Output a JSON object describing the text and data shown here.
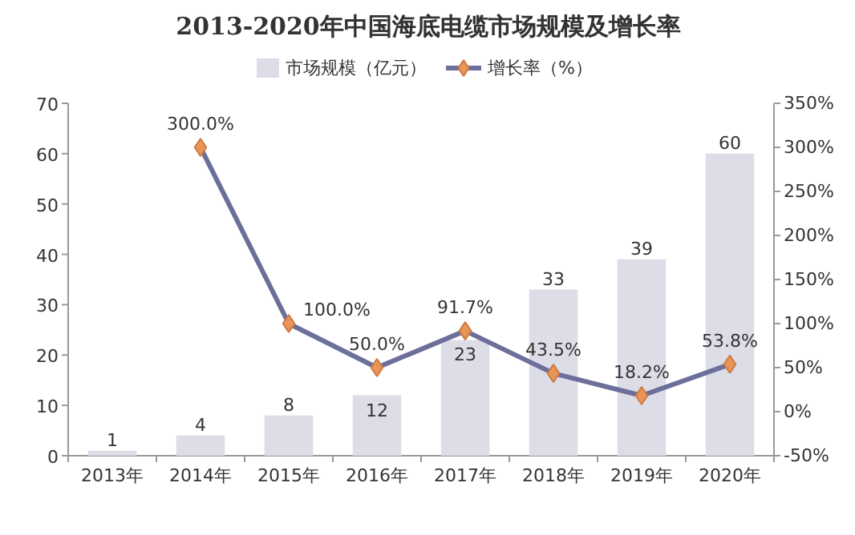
{
  "chart_data": {
    "type": "bar",
    "title": "2013-2020年中国海底电缆市场规模及增长率",
    "categories": [
      "2013年",
      "2014年",
      "2015年",
      "2016年",
      "2017年",
      "2018年",
      "2019年",
      "2020年"
    ],
    "series": [
      {
        "name": "市场规模（亿元）",
        "color": "#dcdde6",
        "values": [
          1,
          4,
          8,
          12,
          23,
          33,
          39,
          60
        ],
        "value_labels": [
          "1",
          "4",
          "8",
          "12",
          "23",
          "33",
          "39",
          "60"
        ]
      },
      {
        "name": "增长率（%）",
        "type": "line",
        "axis": "y2",
        "color": "#6b6f9a",
        "values": [
          null,
          300.0,
          100.0,
          50.0,
          91.7,
          43.5,
          18.2,
          53.8
        ],
        "value_labels": [
          null,
          "300.0%",
          "100.0%",
          "50.0%",
          "91.7%",
          "43.5%",
          "18.2%",
          "53.8%"
        ]
      }
    ],
    "ylim": [
      0,
      70
    ],
    "yticks": [
      0,
      10,
      20,
      30,
      40,
      50,
      60,
      70
    ],
    "y2lim": [
      -50,
      350
    ],
    "y2ticks": [
      {
        "value": -50,
        "label": "-50%"
      },
      {
        "value": 0,
        "label": "0%"
      },
      {
        "value": 50,
        "label": "50%"
      },
      {
        "value": 100,
        "label": "100%"
      },
      {
        "value": 150,
        "label": "150%"
      },
      {
        "value": 200,
        "label": "200%"
      },
      {
        "value": 250,
        "label": "250%"
      },
      {
        "value": 300,
        "label": "300%"
      },
      {
        "value": 350,
        "label": "350%"
      }
    ],
    "marker": "diamond",
    "grid": false,
    "legend": "top"
  }
}
